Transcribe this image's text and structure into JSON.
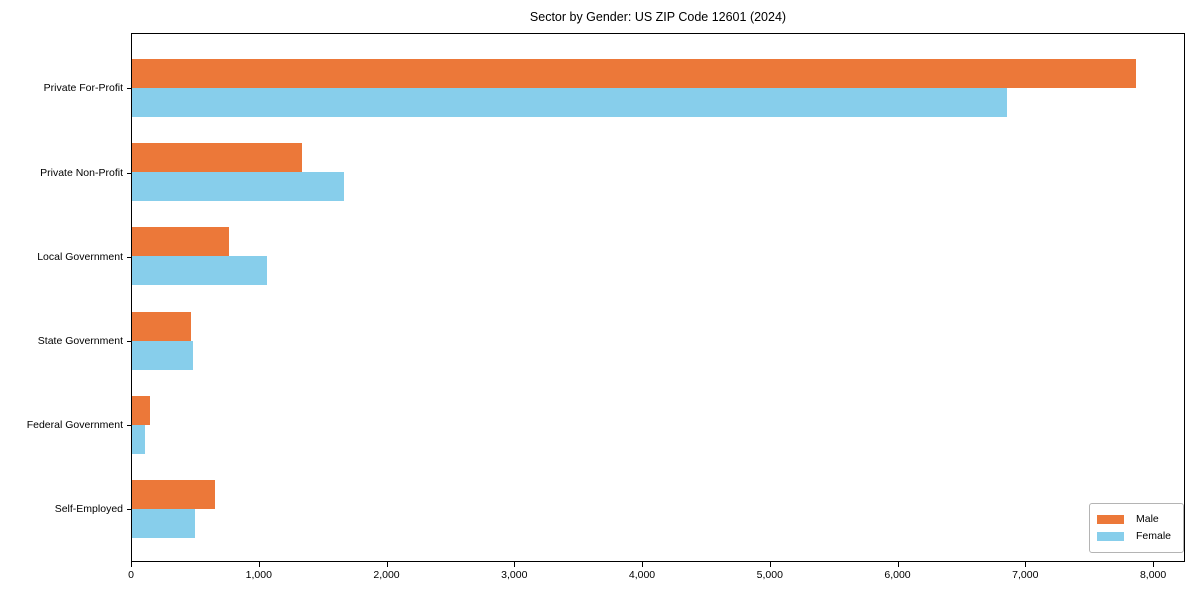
{
  "figure": {
    "title": "Sector by Gender: US ZIP Code 12601 (2024)"
  },
  "chart_data": {
    "type": "bar",
    "orientation": "horizontal",
    "title": "Sector by Gender: US ZIP Code 12601 (2024)",
    "categories": [
      "Private For-Profit",
      "Private Non-Profit",
      "Local Government",
      "State Government",
      "Federal Government",
      "Self-Employed"
    ],
    "series": [
      {
        "name": "Male",
        "color": "#ec7839",
        "values": [
          7860,
          1330,
          760,
          460,
          140,
          650
        ]
      },
      {
        "name": "Female",
        "color": "#87ceeb",
        "values": [
          6850,
          1660,
          1060,
          480,
          100,
          490
        ]
      }
    ],
    "xlabel": "",
    "ylabel": "",
    "xlim": [
      0,
      8250
    ],
    "xticks": [
      0,
      1000,
      2000,
      3000,
      4000,
      5000,
      6000,
      7000,
      8000
    ],
    "xtick_labels": [
      "0",
      "1,000",
      "2,000",
      "3,000",
      "4,000",
      "5,000",
      "6,000",
      "7,000",
      "8,000"
    ],
    "grid": false,
    "legend_position": "lower right",
    "plot_background": "#ffffff",
    "spine_color": "#000000"
  }
}
